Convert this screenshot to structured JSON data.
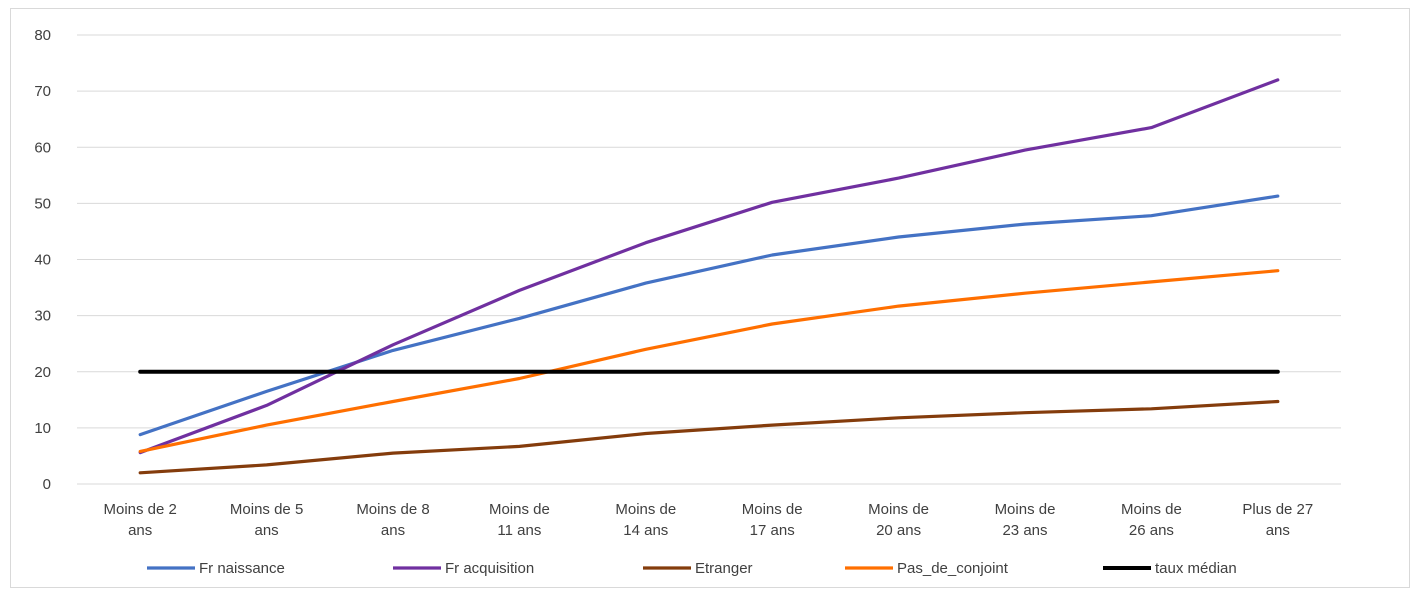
{
  "chart_data": {
    "type": "line",
    "title": "",
    "xlabel": "",
    "ylabel": "",
    "categories": [
      [
        "Moins de 2",
        "ans"
      ],
      [
        "Moins de 5",
        "ans"
      ],
      [
        "Moins de 8",
        "ans"
      ],
      [
        "Moins de",
        "11 ans"
      ],
      [
        "Moins de",
        "14 ans"
      ],
      [
        "Moins de",
        "17 ans"
      ],
      [
        "Moins de",
        "20 ans"
      ],
      [
        "Moins de",
        "23 ans"
      ],
      [
        "Moins de",
        "26 ans"
      ],
      [
        "Plus de 27",
        "ans"
      ]
    ],
    "ylim": [
      0,
      80
    ],
    "yticks": [
      0,
      10,
      20,
      30,
      40,
      50,
      60,
      70,
      80
    ],
    "grid": true,
    "legend_position": "bottom",
    "series": [
      {
        "name": "Fr naissance",
        "color": "#4472C4",
        "values": [
          8.8,
          16.5,
          23.8,
          29.5,
          35.8,
          40.8,
          44.0,
          46.3,
          47.8,
          51.3
        ]
      },
      {
        "name": "Fr acquisition",
        "color": "#7030A0",
        "values": [
          5.6,
          14.0,
          24.8,
          34.5,
          43.0,
          50.2,
          54.5,
          59.5,
          63.5,
          72.0
        ]
      },
      {
        "name": "Etranger",
        "color": "#843C0C",
        "values": [
          2.0,
          3.4,
          5.5,
          6.7,
          9.0,
          10.5,
          11.8,
          12.7,
          13.4,
          14.7
        ]
      },
      {
        "name": "Pas_de_conjoint",
        "color": "#FF6F00",
        "values": [
          5.8,
          10.5,
          14.7,
          18.8,
          24.0,
          28.5,
          31.7,
          34.0,
          36.0,
          38.0
        ]
      },
      {
        "name": "taux médian",
        "color": "#000000",
        "values": [
          20,
          20,
          20,
          20,
          20,
          20,
          20,
          20,
          20,
          20
        ]
      }
    ]
  }
}
